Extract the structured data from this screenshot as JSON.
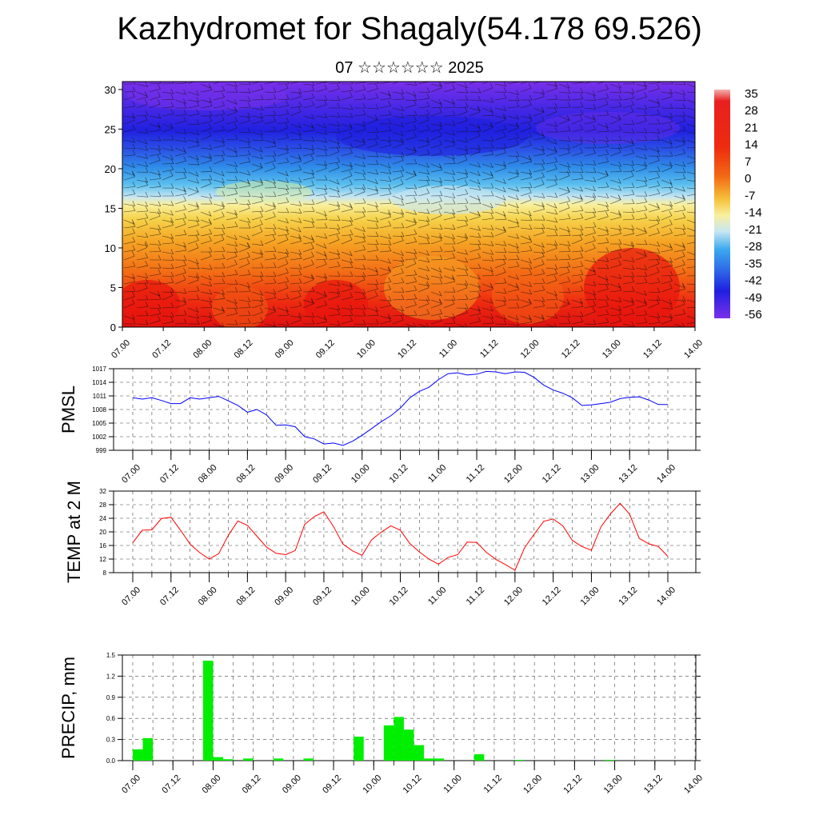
{
  "title": "Kazhydromet for Shagaly(54.178 69.526)",
  "subtitle": "07 ☆☆☆☆☆☆ 2025",
  "chart_data": [
    {
      "type": "heatmap",
      "y_ticks": [
        "0",
        "5",
        "10",
        "15",
        "20",
        "25",
        "30"
      ],
      "ylim": [
        0,
        31
      ],
      "x_ticks": [
        "07.00",
        "07.12",
        "08.00",
        "08.12",
        "09.00",
        "09.12",
        "10.00",
        "10.12",
        "11.00",
        "11.12",
        "12.00",
        "12.12",
        "13.00",
        "13.12",
        "14.00"
      ],
      "colorbar_labels": [
        "35",
        "28",
        "21",
        "14",
        "7",
        "0",
        "-7",
        "-14",
        "-21",
        "-28",
        "-35",
        "-42",
        "-49",
        "-56"
      ],
      "colors": {
        "hot": "#e8140e",
        "warm": "#f3a31e",
        "mild": "#f8f08a",
        "cool": "#a6d8ef",
        "cold": "#2a3ce8",
        "coldest": "#7a2ee8"
      },
      "overlay": "wind barbs"
    },
    {
      "type": "line",
      "ylabel": "PMSL",
      "y_ticks": [
        "1017",
        "1014",
        "1011",
        "1008",
        "1005",
        "1002",
        "999"
      ],
      "ylim": [
        999,
        1017
      ],
      "x_ticks": [
        "07.00",
        "07.12",
        "08.00",
        "08.12",
        "09.00",
        "09.12",
        "10.00",
        "10.12",
        "11.00",
        "11.12",
        "12.00",
        "12.12",
        "13.00",
        "13.12",
        "14.00"
      ],
      "x": [
        0,
        3,
        6,
        9,
        12,
        15,
        18,
        21,
        24,
        27,
        30,
        33,
        36,
        39,
        42,
        45,
        48,
        51,
        54,
        57,
        60,
        63,
        66,
        69,
        72,
        75,
        78,
        81,
        84,
        87,
        90,
        93,
        96,
        99,
        102,
        105,
        108,
        111,
        114,
        117,
        120,
        123,
        126,
        129,
        132,
        135,
        138,
        141,
        144,
        147,
        150,
        153,
        156,
        159,
        162,
        165,
        168
      ],
      "series": [
        {
          "color": "#0000ff",
          "values": [
            1010.6,
            1010.3,
            1010.6,
            1010.0,
            1009.3,
            1009.3,
            1010.6,
            1010.3,
            1010.6,
            1010.9,
            1009.9,
            1008.9,
            1007.4,
            1008.0,
            1006.8,
            1004.5,
            1004.6,
            1004.2,
            1002.0,
            1001.5,
            1000.4,
            1000.6,
            1000.1,
            1001.0,
            1002.3,
            1003.8,
            1005.3,
            1006.6,
            1008.3,
            1010.6,
            1012.0,
            1012.9,
            1014.6,
            1015.9,
            1016.1,
            1015.6,
            1015.8,
            1016.4,
            1016.3,
            1015.9,
            1016.3,
            1016.2,
            1015.1,
            1013.4,
            1012.3,
            1011.6,
            1010.6,
            1008.9,
            1009.0,
            1009.3,
            1009.6,
            1010.4,
            1010.7,
            1010.8,
            1010.1,
            1009.1,
            1009.1
          ]
        }
      ]
    },
    {
      "type": "line",
      "ylabel": "TEMP at 2 M",
      "y_ticks": [
        "32",
        "28",
        "24",
        "20",
        "16",
        "12",
        "8"
      ],
      "ylim": [
        8,
        32
      ],
      "x_ticks": [
        "07.00",
        "07.12",
        "08.00",
        "08.12",
        "09.00",
        "09.12",
        "10.00",
        "10.12",
        "11.00",
        "11.12",
        "12.00",
        "12.12",
        "13.00",
        "13.12",
        "14.00"
      ],
      "x": [
        0,
        3,
        6,
        9,
        12,
        15,
        18,
        21,
        24,
        27,
        30,
        33,
        36,
        39,
        42,
        45,
        48,
        51,
        54,
        57,
        60,
        63,
        66,
        69,
        72,
        75,
        78,
        81,
        84,
        87,
        90,
        93,
        96,
        99,
        102,
        105,
        108,
        111,
        114,
        117,
        120,
        123,
        126,
        129,
        132,
        135,
        138,
        141,
        144,
        147,
        150,
        153,
        156,
        159,
        162,
        165,
        168
      ],
      "series": [
        {
          "color": "#ff0000",
          "values": [
            16.8,
            20.5,
            20.6,
            23.9,
            24.3,
            20.5,
            16.4,
            13.9,
            12.0,
            13.6,
            19.0,
            23.2,
            21.9,
            18.7,
            15.5,
            13.7,
            13.3,
            14.5,
            22.2,
            24.5,
            25.9,
            21.6,
            16.4,
            14.4,
            13.1,
            17.7,
            19.9,
            21.8,
            20.5,
            16.6,
            14.1,
            12.0,
            10.5,
            12.5,
            13.3,
            17.0,
            16.9,
            14.0,
            11.9,
            10.4,
            8.7,
            15.3,
            19.3,
            23.1,
            23.8,
            21.8,
            17.5,
            15.7,
            14.6,
            21.5,
            25.3,
            28.4,
            25.2,
            18.1,
            16.5,
            15.7,
            12.8
          ]
        }
      ]
    },
    {
      "type": "bar",
      "ylabel": "PRECIP, mm",
      "y_ticks": [
        "1.5",
        "1.2",
        "0.9",
        "0.6",
        "0.3",
        "0.0"
      ],
      "ylim": [
        0,
        1.5
      ],
      "x_ticks": [
        "07.00",
        "07.12",
        "08.00",
        "08.12",
        "09.00",
        "09.12",
        "10.00",
        "10.12",
        "11.00",
        "11.12",
        "12.00",
        "12.12",
        "13.00",
        "13.12",
        "14.00"
      ],
      "x": [
        3,
        6,
        24,
        27,
        30,
        36,
        45,
        54,
        69,
        78,
        81,
        84,
        87,
        90,
        93,
        105,
        117,
        144
      ],
      "values": [
        0.16,
        0.32,
        1.42,
        0.05,
        0.02,
        0.03,
        0.03,
        0.03,
        0.34,
        0.5,
        0.62,
        0.44,
        0.22,
        0.03,
        0.03,
        0.09,
        0.01,
        0.01
      ],
      "color": "#00ee00"
    }
  ]
}
